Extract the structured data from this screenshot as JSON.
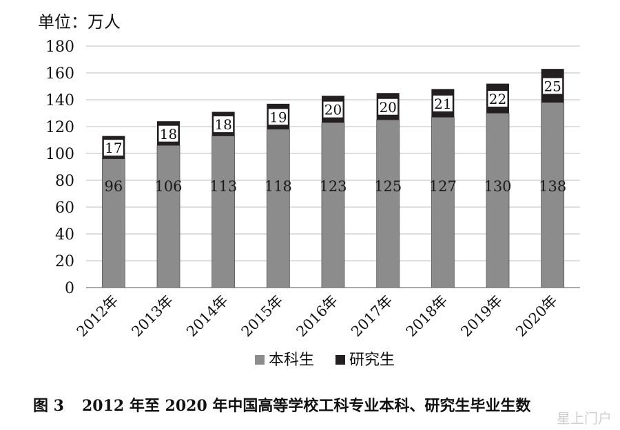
{
  "unit_label": "单位：万人",
  "caption": {
    "figure_no": "图 3",
    "text": "2012 年至 2020 年中国高等学校工科专业本科、研究生毕业生数"
  },
  "watermark": "星上门户",
  "colors": {
    "undergraduate": "#8c8c8c",
    "graduate": "#231f20",
    "gridline": "#bdbdbd"
  },
  "chart_data": {
    "type": "bar",
    "stacked": true,
    "categories": [
      "2012年",
      "2013年",
      "2014年",
      "2015年",
      "2016年",
      "2017年",
      "2018年",
      "2019年",
      "2020年"
    ],
    "series": [
      {
        "name": "本科生",
        "values": [
          96,
          106,
          113,
          118,
          123,
          125,
          127,
          130,
          138
        ]
      },
      {
        "name": "研究生",
        "values": [
          17,
          18,
          18,
          19,
          20,
          20,
          21,
          22,
          25
        ]
      }
    ],
    "yticks": [
      "0",
      "20",
      "40",
      "60",
      "80",
      "100",
      "120",
      "140",
      "160",
      "180"
    ],
    "ylim": [
      0,
      180
    ],
    "grid": true,
    "legend_position": "bottom"
  }
}
